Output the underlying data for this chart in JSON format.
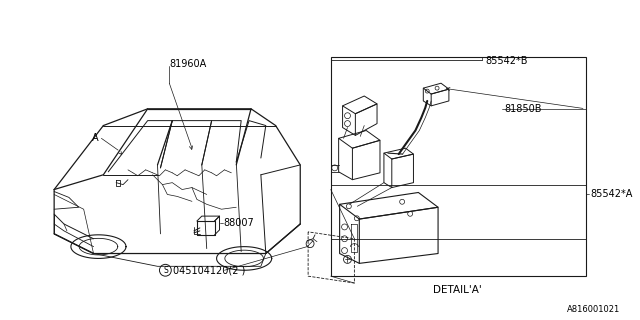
{
  "bg_color": "#ffffff",
  "line_color": "#1a1a1a",
  "diagram_id": "A816001021",
  "font_size": 7.0,
  "small_font": 6.0,
  "label_81960A": "81960A",
  "label_A": "A",
  "label_88007": "88007",
  "label_screw": "045104120(2 )",
  "label_85542B": "85542*B",
  "label_81850B": "81850B",
  "label_85542A": "85542*A",
  "label_detailA": "DETAIL*A*"
}
